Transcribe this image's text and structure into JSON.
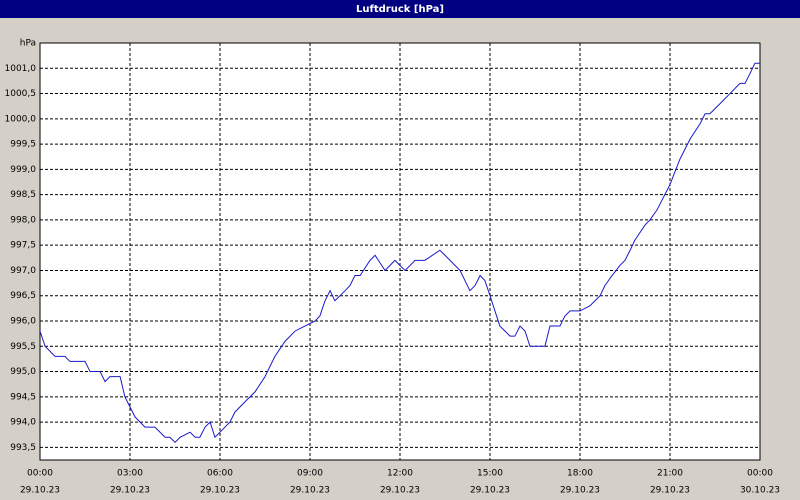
{
  "chart_data": {
    "type": "line",
    "title": "Luftdruck [hPa]",
    "y_label": "hPa",
    "x": [
      0,
      0.17,
      0.5,
      0.83,
      1.0,
      1.5,
      1.67,
      2.0,
      2.17,
      2.33,
      2.67,
      2.83,
      3.17,
      3.5,
      3.83,
      4.17,
      4.33,
      4.5,
      4.67,
      5.0,
      5.17,
      5.33,
      5.5,
      5.67,
      5.83,
      6.0,
      6.33,
      6.5,
      6.83,
      7.17,
      7.5,
      7.83,
      8.17,
      8.5,
      8.83,
      9.17,
      9.33,
      9.5,
      9.67,
      9.83,
      10.17,
      10.33,
      10.5,
      10.67,
      11.0,
      11.17,
      11.5,
      11.83,
      12.17,
      12.5,
      12.83,
      13.33,
      13.5,
      14.0,
      14.33,
      14.5,
      14.67,
      14.83,
      15.0,
      15.33,
      15.5,
      15.67,
      15.83,
      16.0,
      16.17,
      16.33,
      16.83,
      17.0,
      17.33,
      17.5,
      17.67,
      18.0,
      18.33,
      18.5,
      18.67,
      18.83,
      19.07,
      19.33,
      19.5,
      19.67,
      19.83,
      20.17,
      20.33,
      20.57,
      21.0,
      21.33,
      21.5,
      21.67,
      22.0,
      22.17,
      22.33,
      22.67,
      23.0,
      23.33,
      23.5,
      23.67,
      23.83,
      24.0
    ],
    "series": [
      {
        "name": "Luftdruck",
        "color": "#1a1acc",
        "values": [
          995.8,
          995.5,
          995.3,
          995.3,
          995.2,
          995.2,
          995.0,
          995.0,
          994.8,
          994.9,
          994.9,
          994.5,
          994.1,
          993.9,
          993.9,
          993.7,
          993.7,
          993.6,
          993.7,
          993.8,
          993.7,
          993.7,
          993.9,
          994.0,
          993.7,
          993.8,
          994.0,
          994.2,
          994.4,
          994.6,
          994.9,
          995.3,
          995.6,
          995.8,
          995.9,
          996.0,
          996.1,
          996.4,
          996.6,
          996.4,
          996.6,
          996.7,
          996.9,
          996.9,
          997.2,
          997.3,
          997.0,
          997.2,
          997.0,
          997.2,
          997.2,
          997.4,
          997.3,
          997.0,
          996.6,
          996.7,
          996.9,
          996.8,
          996.5,
          995.9,
          995.8,
          995.7,
          995.7,
          995.9,
          995.8,
          995.5,
          995.5,
          995.9,
          995.9,
          996.1,
          996.2,
          996.2,
          996.3,
          996.4,
          996.5,
          996.7,
          996.9,
          997.1,
          997.2,
          997.4,
          997.6,
          997.9,
          998.0,
          998.2,
          998.7,
          999.2,
          999.4,
          999.6,
          999.9,
          1000.1,
          1000.1,
          1000.3,
          1000.5,
          1000.7,
          1000.7,
          1000.9,
          1001.1,
          1001.1
        ]
      }
    ],
    "xlim": [
      0,
      24
    ],
    "xticks": [
      {
        "value": 0,
        "label": "00:00"
      },
      {
        "value": 3,
        "label": "03:00"
      },
      {
        "value": 6,
        "label": "06:00"
      },
      {
        "value": 9,
        "label": "09:00"
      },
      {
        "value": 12,
        "label": "12:00"
      },
      {
        "value": 15,
        "label": "15:00"
      },
      {
        "value": 18,
        "label": "18:00"
      },
      {
        "value": 21,
        "label": "21:00"
      },
      {
        "value": 24,
        "label": "00:00"
      }
    ],
    "xtick_dates": [
      "29.10.23",
      "29.10.23",
      "29.10.23",
      "29.10.23",
      "29.10.23",
      "29.10.23",
      "29.10.23",
      "29.10.23",
      "30.10.23"
    ],
    "ylim": [
      993.25,
      1001.5
    ],
    "yticks": [
      {
        "value": 993.5,
        "label": "993,5"
      },
      {
        "value": 994,
        "label": "994,0"
      },
      {
        "value": 994.5,
        "label": "994,5"
      },
      {
        "value": 995,
        "label": "995,0"
      },
      {
        "value": 995.5,
        "label": "995,5"
      },
      {
        "value": 996,
        "label": "996,0"
      },
      {
        "value": 996.5,
        "label": "996,5"
      },
      {
        "value": 997,
        "label": "997,0"
      },
      {
        "value": 997.5,
        "label": "997,5"
      },
      {
        "value": 998,
        "label": "998,0"
      },
      {
        "value": 998.5,
        "label": "998,5"
      },
      {
        "value": 999,
        "label": "999,0"
      },
      {
        "value": 999.5,
        "label": "999,5"
      },
      {
        "value": 1000,
        "label": "1000,0"
      },
      {
        "value": 1000.5,
        "label": "1000,5"
      },
      {
        "value": 1001,
        "label": "1001,0"
      }
    ],
    "grid": true
  }
}
